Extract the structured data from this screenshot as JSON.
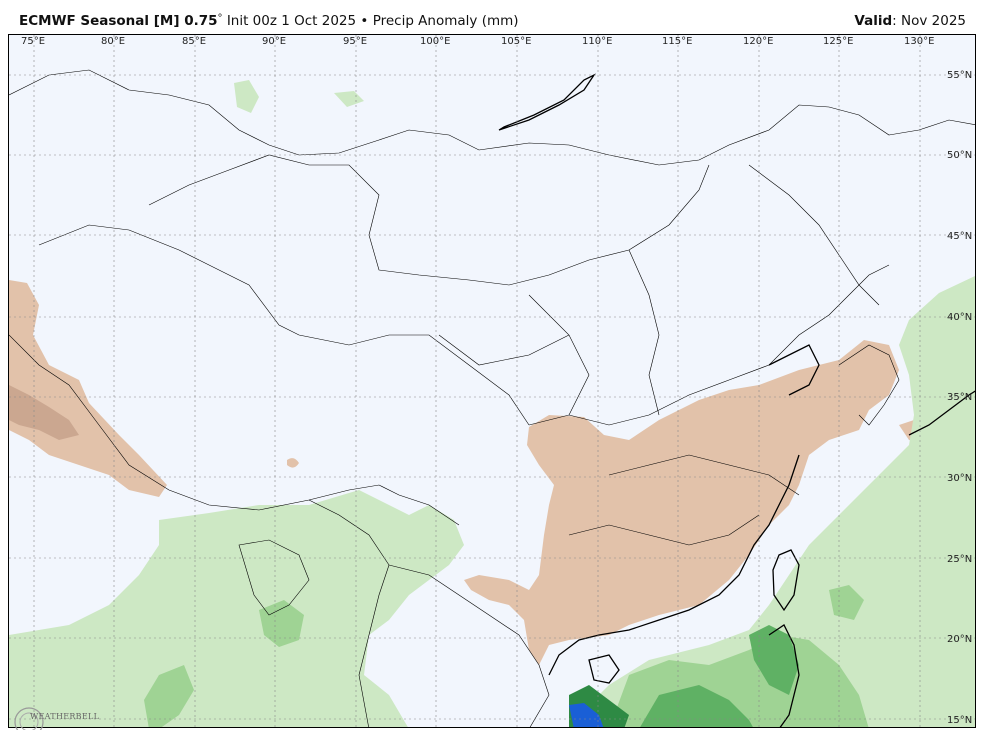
{
  "header": {
    "model": "ECMWF Seasonal [M] 0.75",
    "degree": "°",
    "init": "Init 00z 1 Oct 2025",
    "bullet": "•",
    "field": "Precip Anomaly (mm)",
    "valid_label": "Valid",
    "valid_value": ": Nov 2025"
  },
  "lon_ticks": [
    "75°E",
    "80°E",
    "85°E",
    "90°E",
    "95°E",
    "100°E",
    "105°E",
    "110°E",
    "115°E",
    "120°E",
    "125°E",
    "130°E"
  ],
  "lat_ticks": [
    "55°N",
    "50°N",
    "45°N",
    "40°N",
    "35°N",
    "30°N",
    "25°N",
    "20°N",
    "15°N"
  ],
  "logo": {
    "text": "WEATHERBELL"
  },
  "colors": {
    "ocean_background": "#f2f6fd",
    "dry_anomaly": "#e2c2aa",
    "dry_anomaly_strong": "#c7a28c",
    "wet_light": "#cde8c4",
    "wet_mid": "#9fd394",
    "wet_dark": "#5fb164",
    "wet_darker": "#2e8a44",
    "wet_extreme": "#1a5fd6",
    "borders": "#000000"
  }
}
